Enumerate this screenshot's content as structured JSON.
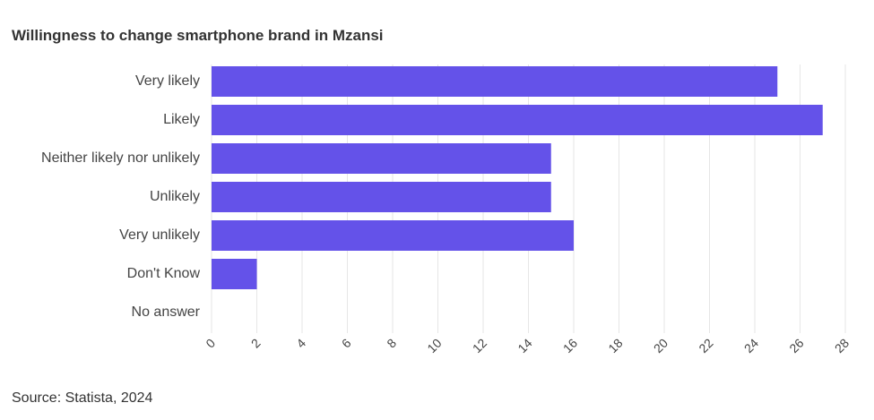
{
  "chart_data": {
    "type": "bar",
    "orientation": "horizontal",
    "title": "Willingness to change smartphone brand in Mzansi",
    "source": "Source: Statista, 2024",
    "categories": [
      "Very likely",
      "Likely",
      "Neither likely nor unlikely",
      "Unlikely",
      "Very unlikely",
      "Don't Know",
      "No answer"
    ],
    "values": [
      25,
      27,
      15,
      15,
      16,
      2,
      0
    ],
    "xlim": [
      0,
      28
    ],
    "xticks": [
      0,
      2,
      4,
      6,
      8,
      10,
      12,
      14,
      16,
      18,
      20,
      22,
      24,
      26,
      28
    ],
    "xtick_labels": [
      "0",
      "2",
      "4",
      "6",
      "8",
      "10",
      "12",
      "14",
      "16",
      "18",
      "20",
      "22",
      "24",
      "26",
      "28"
    ],
    "bar_color": "#6452E9",
    "grid": true,
    "xlabel": "",
    "ylabel": ""
  }
}
